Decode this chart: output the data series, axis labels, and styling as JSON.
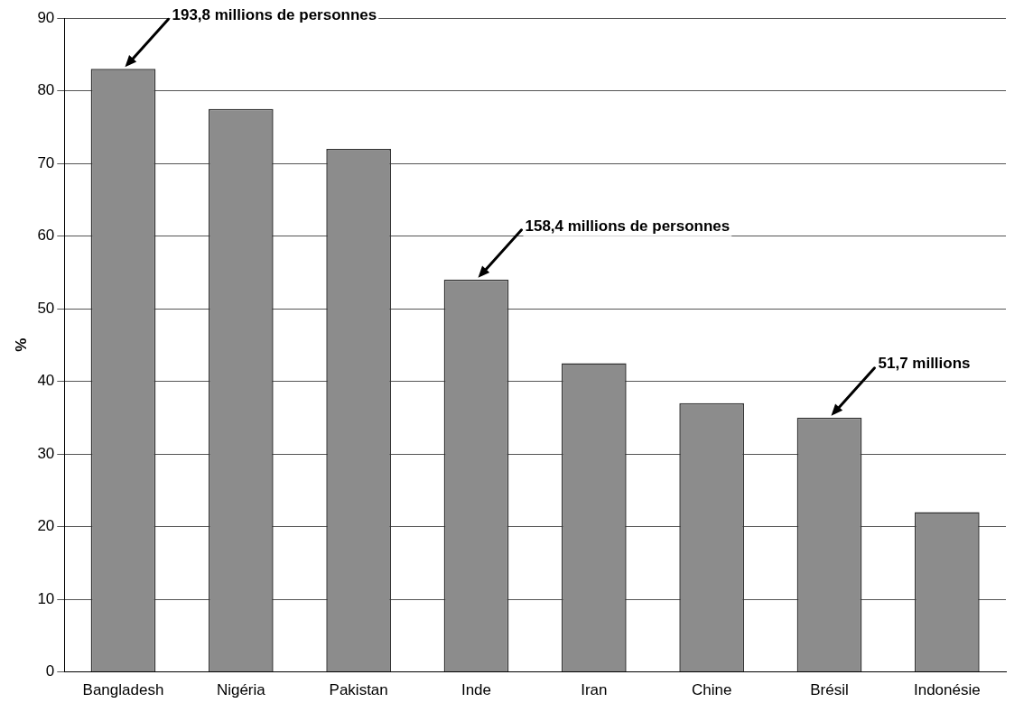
{
  "chart_data": {
    "type": "bar",
    "ylabel": "%",
    "categories": [
      "Bangladesh",
      "Nigéria",
      "Pakistan",
      "Inde",
      "Iran",
      "Chine",
      "Brésil",
      "Indonésie"
    ],
    "values": [
      83,
      77.5,
      72,
      54,
      42.5,
      37,
      35,
      22
    ],
    "color": "#8c8c8c",
    "ylim": [
      0,
      90
    ],
    "yticks": [
      0,
      10,
      20,
      30,
      40,
      50,
      60,
      70,
      80,
      90
    ],
    "grid": "y",
    "annotations": [
      {
        "text": "193,8 millions de personnes",
        "x": "Bangladesh",
        "y": 83
      },
      {
        "text": "158,4 millions de personnes",
        "x": "Inde",
        "y": 54
      },
      {
        "text": "51,7 millions",
        "x": "Brésil",
        "y": 35
      }
    ]
  }
}
